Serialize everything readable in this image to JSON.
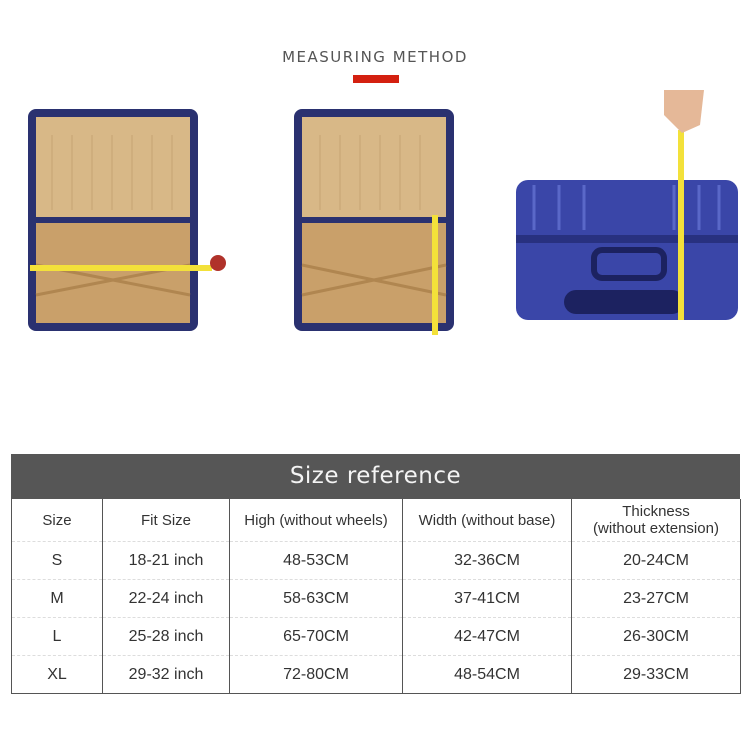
{
  "heading": "MEASURING METHOD",
  "accent_color": "#d42010",
  "photos": [
    {
      "icon": "open-suitcase-width-measure-image"
    },
    {
      "icon": "open-suitcase-height-measure-image"
    },
    {
      "icon": "closed-suitcase-thickness-measure-image"
    }
  ],
  "table": {
    "title": "Size reference",
    "columns": [
      "Size",
      "Fit Size",
      "High (without wheels)",
      "Width (without base)",
      "Thickness (without extension)"
    ],
    "columns_lines": {
      "thickness_1": "Thickness",
      "thickness_2": "(without extension)"
    },
    "rows": [
      [
        "S",
        "18-21 inch",
        "48-53CM",
        "32-36CM",
        "20-24CM"
      ],
      [
        "M",
        "22-24 inch",
        "58-63CM",
        "37-41CM",
        "23-27CM"
      ],
      [
        "L",
        "25-28 inch",
        "65-70CM",
        "42-47CM",
        "26-30CM"
      ],
      [
        "XL",
        "29-32 inch",
        "72-80CM",
        "48-54CM",
        "29-33CM"
      ]
    ]
  }
}
